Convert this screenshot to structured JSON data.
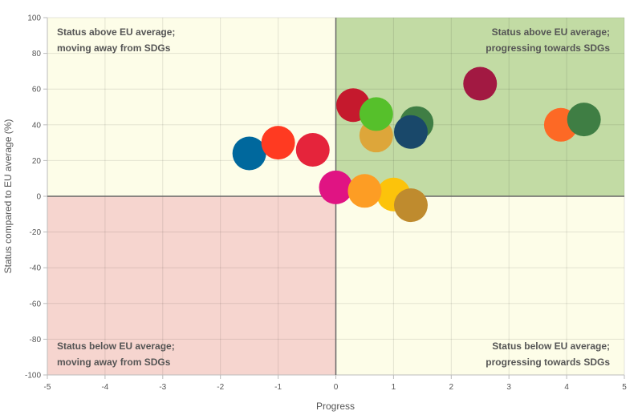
{
  "chart_data": {
    "type": "scatter",
    "title": "",
    "xlabel": "Progress",
    "ylabel": "Status compared to EU average (%)",
    "xlim": [
      -5,
      5
    ],
    "ylim": [
      -100,
      100
    ],
    "x_ticks": [
      "-5",
      "-4",
      "-3",
      "-2",
      "-1",
      "0",
      "1",
      "2",
      "3",
      "4",
      "5"
    ],
    "y_ticks": [
      "100",
      "80",
      "60",
      "40",
      "20",
      "0",
      "-20",
      "-40",
      "-60",
      "-80",
      "-100"
    ],
    "grid": true,
    "quadrants": {
      "top_left": {
        "line1": "Status above EU average;",
        "line2": "moving away from SDGs",
        "color": "#fdfde8"
      },
      "top_right": {
        "line1": "Status above EU average;",
        "line2": "progressing towards SDGs",
        "color": "#c2dba4"
      },
      "bottom_left": {
        "line1": "Status below EU average;",
        "line2": "moving away from SDGs",
        "color": "#f6d5cf"
      },
      "bottom_right": {
        "line1": "Status below EU average;",
        "line2": "progressing towards SDGs",
        "color": "#fdfde8"
      }
    },
    "points": [
      {
        "x": -1.5,
        "y": 24,
        "color": "#00689d"
      },
      {
        "x": -1.0,
        "y": 30,
        "color": "#ff3a21"
      },
      {
        "x": -0.4,
        "y": 26,
        "color": "#e5243b"
      },
      {
        "x": 0.0,
        "y": 5,
        "color": "#e01483"
      },
      {
        "x": 0.3,
        "y": 51,
        "color": "#c5192d"
      },
      {
        "x": 0.7,
        "y": 34,
        "color": "#dda63a"
      },
      {
        "x": 0.7,
        "y": 46,
        "color": "#56c02b"
      },
      {
        "x": 1.4,
        "y": 41,
        "color": "#3f7e44"
      },
      {
        "x": 1.3,
        "y": 36,
        "color": "#19486a"
      },
      {
        "x": 1.0,
        "y": 1,
        "color": "#fcc30b"
      },
      {
        "x": 0.5,
        "y": 3,
        "color": "#fd9d24"
      },
      {
        "x": 1.3,
        "y": -5,
        "color": "#bf8b2e"
      },
      {
        "x": 2.5,
        "y": 63,
        "color": "#a21942"
      },
      {
        "x": 3.9,
        "y": 40,
        "color": "#fd6925"
      },
      {
        "x": 4.3,
        "y": 43,
        "color": "#3f7e44"
      }
    ]
  }
}
